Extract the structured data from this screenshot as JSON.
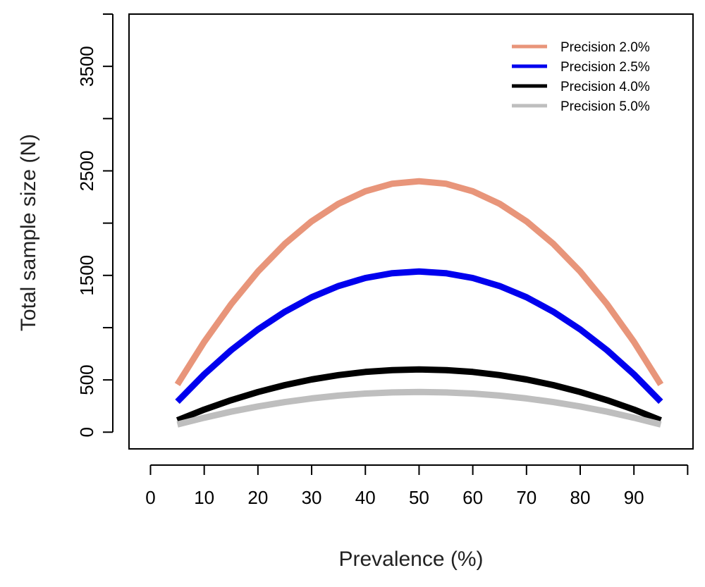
{
  "chart_data": {
    "type": "line",
    "xlabel": "Prevalence (%)",
    "ylabel": "Total sample size (N)",
    "xlim": [
      -4,
      101
    ],
    "ylim": [
      -160,
      4000
    ],
    "x_ticks": [
      0,
      10,
      20,
      30,
      40,
      50,
      60,
      70,
      80,
      90,
      100
    ],
    "x_tick_labels": [
      "0",
      "10",
      "20",
      "30",
      "40",
      "50",
      "60",
      "70",
      "80",
      "90",
      ""
    ],
    "y_ticks": [
      0,
      500,
      1000,
      1500,
      2000,
      2500,
      3000,
      3500,
      4000
    ],
    "y_tick_labels": [
      "0",
      "500",
      "",
      "1500",
      "",
      "2500",
      "",
      "3500",
      ""
    ],
    "grid": false,
    "legend_position": "top-right",
    "x": [
      5,
      10,
      15,
      20,
      25,
      30,
      35,
      40,
      45,
      50,
      55,
      60,
      65,
      70,
      75,
      80,
      85,
      90,
      95
    ],
    "series": [
      {
        "name": "Precision 2.0%",
        "color": "#E8957A",
        "values": [
          456,
          864,
          1224,
          1537,
          1801,
          2017,
          2185,
          2305,
          2377,
          2401,
          2377,
          2305,
          2185,
          2017,
          1801,
          1537,
          1224,
          864,
          456
        ]
      },
      {
        "name": "Precision 2.5%",
        "color": "#0000EE",
        "values": [
          292,
          553,
          784,
          983,
          1152,
          1291,
          1398,
          1475,
          1521,
          1537,
          1521,
          1475,
          1398,
          1291,
          1152,
          983,
          784,
          553,
          292
        ]
      },
      {
        "name": "Precision 4.0%",
        "color": "#000000",
        "values": [
          114,
          216,
          306,
          384,
          450,
          504,
          546,
          576,
          594,
          600,
          594,
          576,
          546,
          504,
          450,
          384,
          306,
          216,
          114
        ]
      },
      {
        "name": "Precision 5.0%",
        "color": "#BEBEBE",
        "values": [
          73,
          138,
          196,
          246,
          288,
          323,
          350,
          369,
          380,
          384,
          380,
          369,
          350,
          323,
          288,
          246,
          196,
          138,
          73
        ]
      }
    ]
  }
}
